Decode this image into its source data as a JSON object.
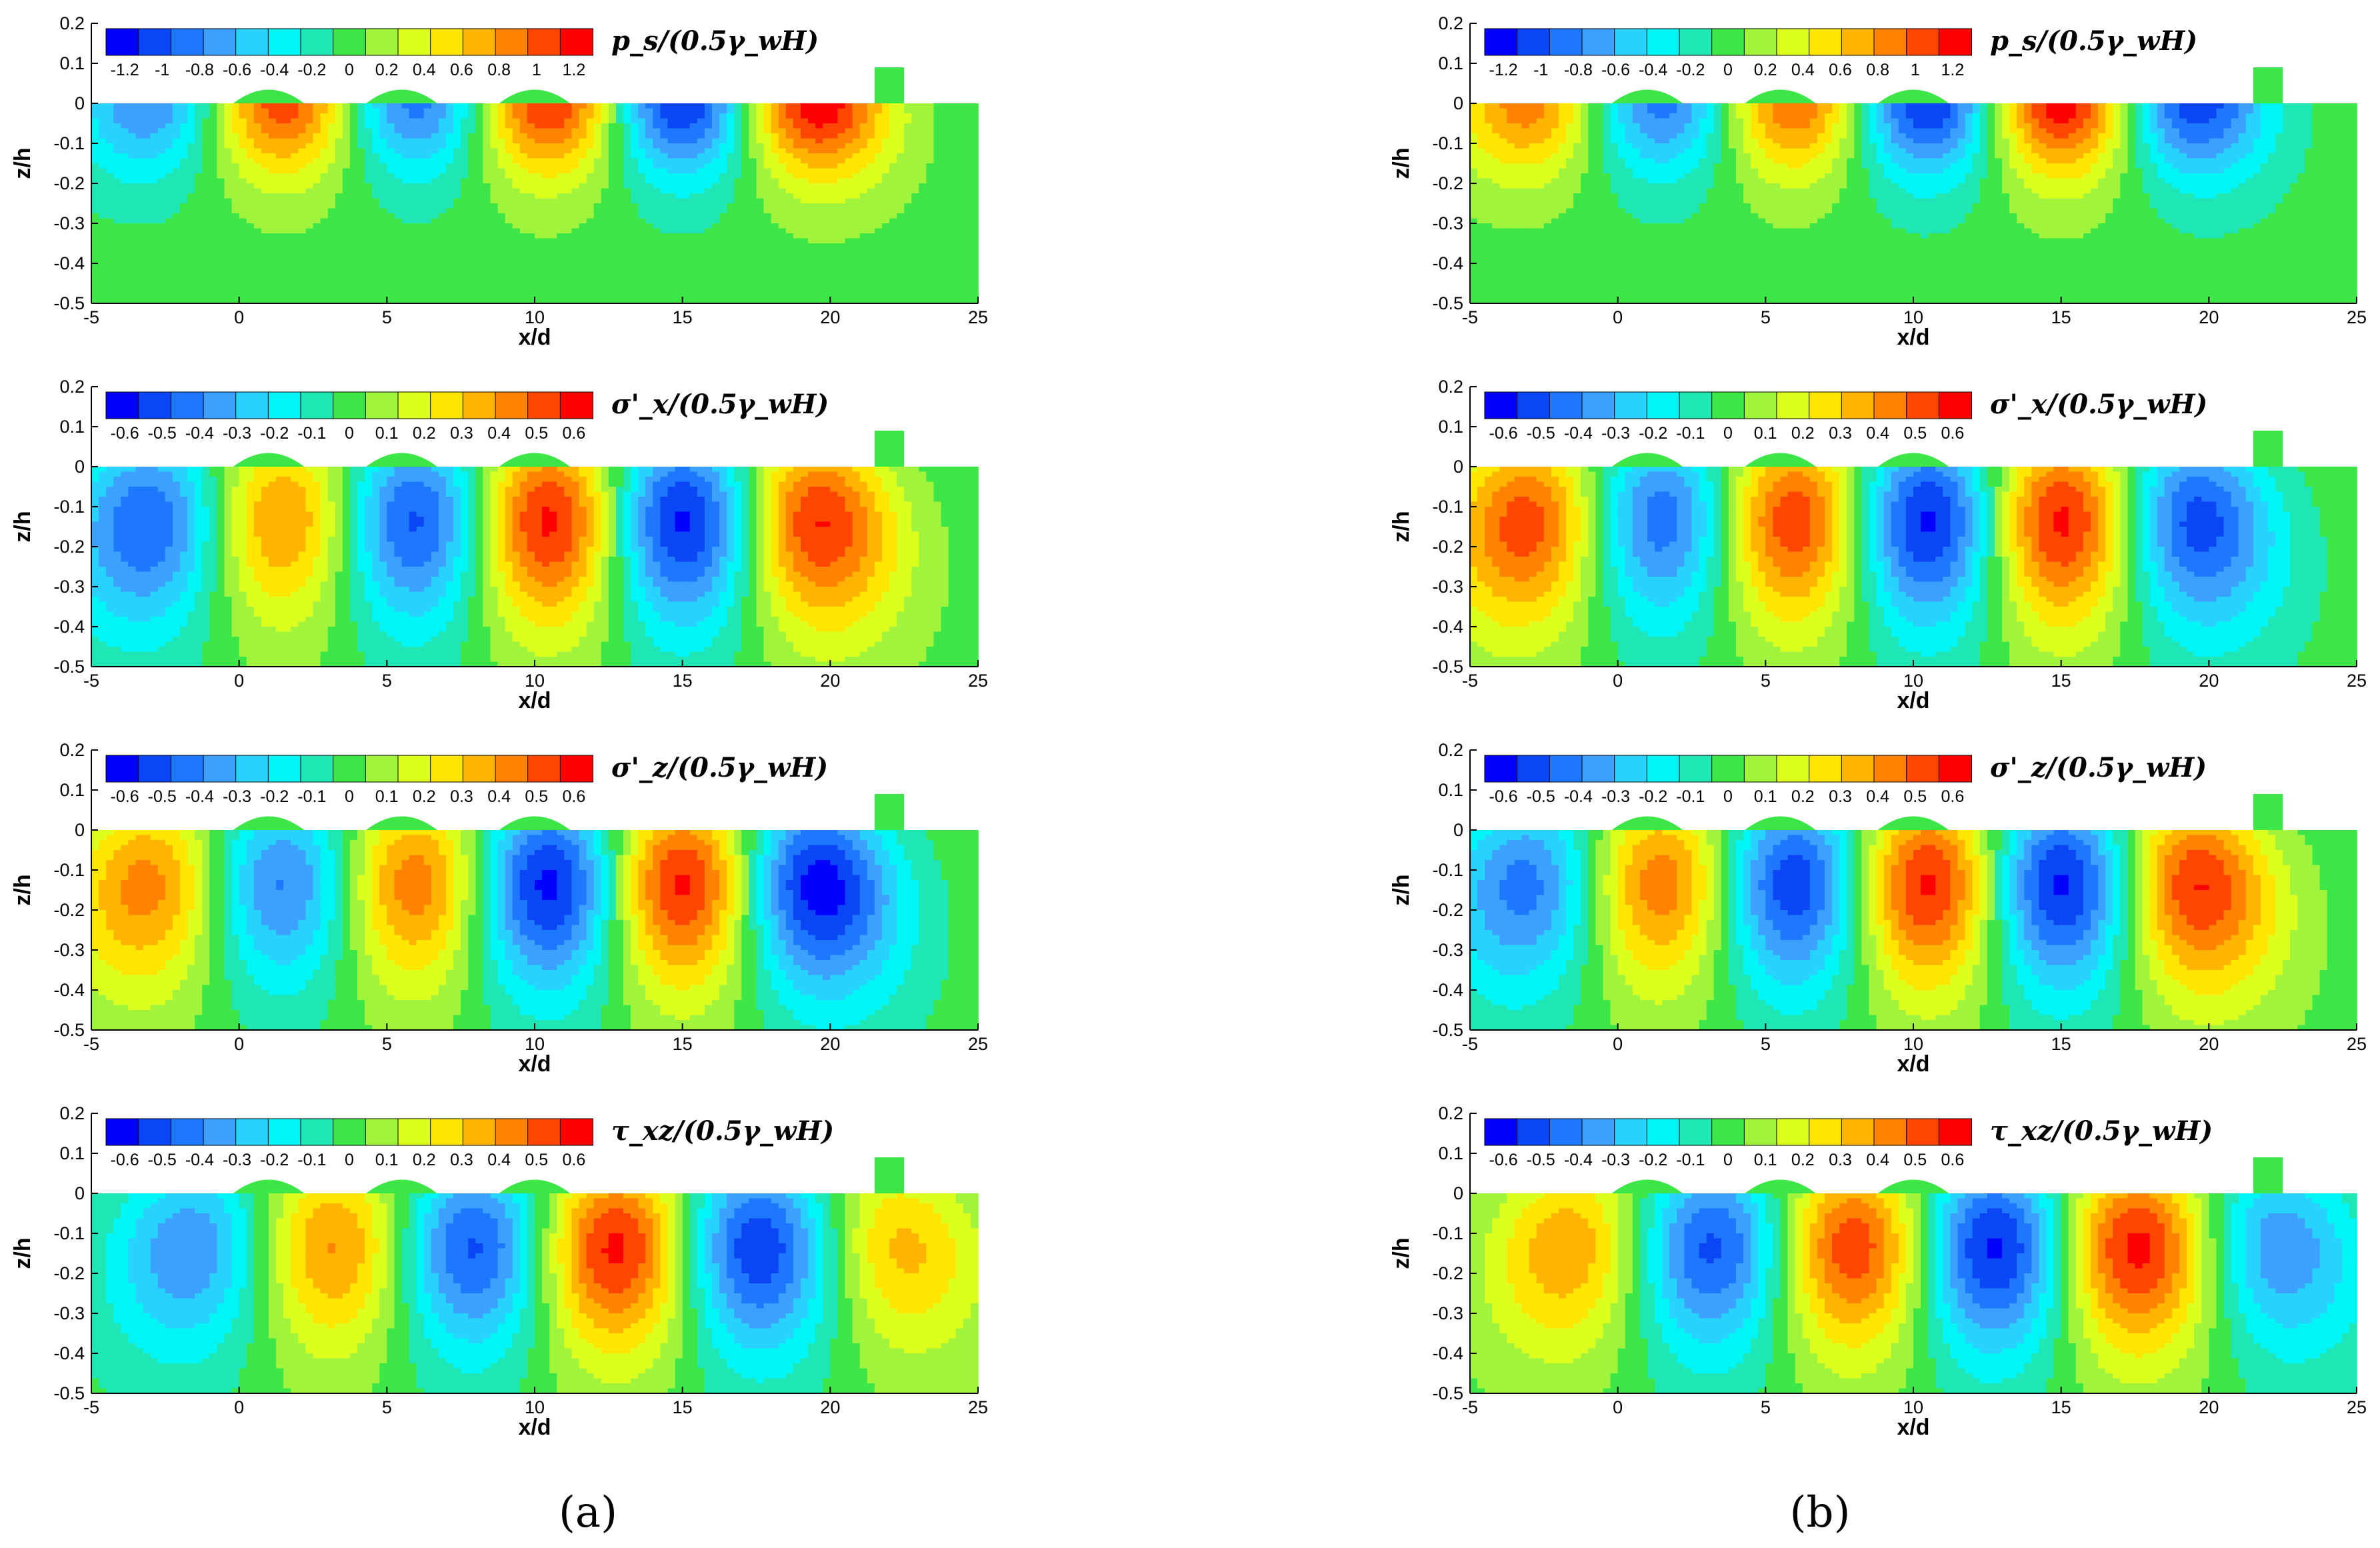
{
  "figure": {
    "panel_labels": [
      "(a)",
      "(b)"
    ]
  },
  "chart_data": [
    {
      "type": "heatmap",
      "panel": "a",
      "row": 1,
      "title": "p_s/(0.5γ_wH)",
      "xlabel": "x/d",
      "ylabel": "z/h",
      "xlim": [
        -5,
        25
      ],
      "ylim": [
        -0.5,
        0.2
      ],
      "x_ticks": [
        "-5",
        "0",
        "5",
        "10",
        "15",
        "20",
        "25"
      ],
      "y_ticks": [
        "0.2",
        "0.1",
        "0",
        "-0.1",
        "-0.2",
        "-0.3",
        "-0.4",
        "-0.5"
      ],
      "colorbar": {
        "min": -1.3,
        "max": 1.3,
        "ticks": [
          "-1.2",
          "-1",
          "-0.8",
          "-0.6",
          "-0.4",
          "-0.2",
          "0",
          "0.2",
          "0.4",
          "0.6",
          "0.8",
          "1",
          "1.2"
        ]
      },
      "structure": {
        "x0": -3.0,
        "wavelength": 9.0,
        "first_sign": -1,
        "depth_scale": 0.1,
        "core_depth": 0.0,
        "amps": [
          -0.8,
          1.1,
          -0.9,
          1.2,
          -1.2,
          1.3
        ]
      },
      "obstacle_x": 22,
      "wave_crests": [
        1,
        5.5,
        10
      ]
    },
    {
      "type": "heatmap",
      "panel": "a",
      "row": 2,
      "title": "σ'_x/(0.5γ_wH)",
      "xlabel": "x/d",
      "ylabel": "z/h",
      "xlim": [
        -5,
        25
      ],
      "ylim": [
        -0.5,
        0.2
      ],
      "x_ticks": [
        "-5",
        "0",
        "5",
        "10",
        "15",
        "20",
        "25"
      ],
      "y_ticks": [
        "0.2",
        "0.1",
        "0",
        "-0.1",
        "-0.2",
        "-0.3",
        "-0.4",
        "-0.5"
      ],
      "colorbar": {
        "min": -0.65,
        "max": 0.65,
        "ticks": [
          "-0.6",
          "-0.5",
          "-0.4",
          "-0.3",
          "-0.2",
          "-0.1",
          "0",
          "0.1",
          "0.2",
          "0.3",
          "0.4",
          "0.5",
          "0.6"
        ]
      },
      "structure": {
        "x0": -3.0,
        "wavelength": 9.0,
        "first_sign": -1,
        "depth_scale": 0.13,
        "core_depth": -0.15,
        "amps": [
          -0.5,
          0.45,
          -0.55,
          0.65,
          -0.65,
          0.6
        ]
      },
      "obstacle_x": 22,
      "wave_crests": [
        1,
        5.5,
        10
      ]
    },
    {
      "type": "heatmap",
      "panel": "a",
      "row": 3,
      "title": "σ'_z/(0.5γ_wH)",
      "xlabel": "x/d",
      "ylabel": "z/h",
      "xlim": [
        -5,
        25
      ],
      "ylim": [
        -0.5,
        0.2
      ],
      "x_ticks": [
        "-5",
        "0",
        "5",
        "10",
        "15",
        "20",
        "25"
      ],
      "y_ticks": [
        "0.2",
        "0.1",
        "0",
        "-0.1",
        "-0.2",
        "-0.3",
        "-0.4",
        "-0.5"
      ],
      "colorbar": {
        "min": -0.65,
        "max": 0.65,
        "ticks": [
          "-0.6",
          "-0.5",
          "-0.4",
          "-0.3",
          "-0.2",
          "-0.1",
          "0",
          "0.1",
          "0.2",
          "0.3",
          "0.4",
          "0.5",
          "0.6"
        ]
      },
      "structure": {
        "x0": -3.0,
        "wavelength": 9.0,
        "first_sign": 1,
        "depth_scale": 0.13,
        "core_depth": -0.15,
        "amps": [
          0.45,
          -0.45,
          0.5,
          -0.65,
          0.65,
          -0.65
        ]
      },
      "obstacle_x": 22,
      "wave_crests": [
        1,
        5.5,
        10
      ]
    },
    {
      "type": "heatmap",
      "panel": "a",
      "row": 4,
      "title": "τ_xz/(0.5γ_wH)",
      "xlabel": "x/d",
      "ylabel": "z/h",
      "xlim": [
        -5,
        25
      ],
      "ylim": [
        -0.5,
        0.2
      ],
      "x_ticks": [
        "-5",
        "0",
        "5",
        "10",
        "15",
        "20",
        "25"
      ],
      "y_ticks": [
        "0.2",
        "0.1",
        "0",
        "-0.1",
        "-0.2",
        "-0.3",
        "-0.4",
        "-0.5"
      ],
      "colorbar": {
        "min": -0.65,
        "max": 0.65,
        "ticks": [
          "-0.6",
          "-0.5",
          "-0.4",
          "-0.3",
          "-0.2",
          "-0.1",
          "0",
          "0.1",
          "0.2",
          "0.3",
          "0.4",
          "0.5",
          "0.6"
        ]
      },
      "structure": {
        "x0": -1.5,
        "wavelength": 9.5,
        "first_sign": -1,
        "depth_scale": 0.13,
        "core_depth": -0.15,
        "amps": [
          -0.4,
          0.45,
          -0.55,
          0.65,
          -0.6,
          0.35
        ]
      },
      "obstacle_x": 22,
      "wave_crests": [
        1,
        5.5,
        10
      ]
    },
    {
      "type": "heatmap",
      "panel": "b",
      "row": 1,
      "title": "p_s/(0.5γ_wH)",
      "xlabel": "x/d",
      "ylabel": "z/h",
      "xlim": [
        -5,
        25
      ],
      "ylim": [
        -0.5,
        0.2
      ],
      "x_ticks": [
        "-5",
        "0",
        "5",
        "10",
        "15",
        "20",
        "25"
      ],
      "y_ticks": [
        "0.2",
        "0.1",
        "0",
        "-0.1",
        "-0.2",
        "-0.3",
        "-0.4",
        "-0.5"
      ],
      "colorbar": {
        "min": -1.3,
        "max": 1.3,
        "ticks": [
          "-1.2",
          "-1",
          "-0.8",
          "-0.6",
          "-0.4",
          "-0.2",
          "0",
          "0.2",
          "0.4",
          "0.6",
          "0.8",
          "1",
          "1.2"
        ]
      },
      "structure": {
        "x0": -3.0,
        "wavelength": 9.0,
        "first_sign": 1,
        "depth_scale": 0.1,
        "core_depth": 0.0,
        "amps": [
          0.9,
          -0.9,
          1.0,
          -1.2,
          1.3,
          -1.1
        ]
      },
      "obstacle_x": 22,
      "wave_crests": [
        1,
        5.5,
        10
      ]
    },
    {
      "type": "heatmap",
      "panel": "b",
      "row": 2,
      "title": "σ'_x/(0.5γ_wH)",
      "xlabel": "x/d",
      "ylabel": "z/h",
      "xlim": [
        -5,
        25
      ],
      "ylim": [
        -0.5,
        0.2
      ],
      "x_ticks": [
        "-5",
        "0",
        "5",
        "10",
        "15",
        "20",
        "25"
      ],
      "y_ticks": [
        "0.2",
        "0.1",
        "0",
        "-0.1",
        "-0.2",
        "-0.3",
        "-0.4",
        "-0.5"
      ],
      "colorbar": {
        "min": -0.65,
        "max": 0.65,
        "ticks": [
          "-0.6",
          "-0.5",
          "-0.4",
          "-0.3",
          "-0.2",
          "-0.1",
          "0",
          "0.1",
          "0.2",
          "0.3",
          "0.4",
          "0.5",
          "0.6"
        ]
      },
      "structure": {
        "x0": -3.0,
        "wavelength": 9.0,
        "first_sign": 1,
        "depth_scale": 0.13,
        "core_depth": -0.15,
        "amps": [
          0.55,
          -0.5,
          0.6,
          -0.65,
          0.65,
          -0.55
        ]
      },
      "obstacle_x": 22,
      "wave_crests": [
        1,
        5.5,
        10
      ]
    },
    {
      "type": "heatmap",
      "panel": "b",
      "row": 3,
      "title": "σ'_z/(0.5γ_wH)",
      "xlabel": "x/d",
      "ylabel": "z/h",
      "xlim": [
        -5,
        25
      ],
      "ylim": [
        -0.5,
        0.2
      ],
      "x_ticks": [
        "-5",
        "0",
        "5",
        "10",
        "15",
        "20",
        "25"
      ],
      "y_ticks": [
        "0.2",
        "0.1",
        "0",
        "-0.1",
        "-0.2",
        "-0.3",
        "-0.4",
        "-0.5"
      ],
      "colorbar": {
        "min": -0.65,
        "max": 0.65,
        "ticks": [
          "-0.6",
          "-0.5",
          "-0.4",
          "-0.3",
          "-0.2",
          "-0.1",
          "0",
          "0.1",
          "0.2",
          "0.3",
          "0.4",
          "0.5",
          "0.6"
        ]
      },
      "structure": {
        "x0": -3.0,
        "wavelength": 9.0,
        "first_sign": -1,
        "depth_scale": 0.13,
        "core_depth": -0.15,
        "amps": [
          -0.45,
          0.5,
          -0.6,
          0.65,
          -0.65,
          0.6
        ]
      },
      "obstacle_x": 22,
      "wave_crests": [
        1,
        5.5,
        10
      ]
    },
    {
      "type": "heatmap",
      "panel": "b",
      "row": 4,
      "title": "τ_xz/(0.5γ_wH)",
      "xlabel": "x/d",
      "ylabel": "z/h",
      "xlim": [
        -5,
        25
      ],
      "ylim": [
        -0.5,
        0.2
      ],
      "x_ticks": [
        "-5",
        "0",
        "5",
        "10",
        "15",
        "20",
        "25"
      ],
      "y_ticks": [
        "0.2",
        "0.1",
        "0",
        "-0.1",
        "-0.2",
        "-0.3",
        "-0.4",
        "-0.5"
      ],
      "colorbar": {
        "min": -0.65,
        "max": 0.65,
        "ticks": [
          "-0.6",
          "-0.5",
          "-0.4",
          "-0.3",
          "-0.2",
          "-0.1",
          "0",
          "0.1",
          "0.2",
          "0.3",
          "0.4",
          "0.5",
          "0.6"
        ]
      },
      "structure": {
        "x0": -1.5,
        "wavelength": 9.5,
        "first_sign": 1,
        "depth_scale": 0.13,
        "core_depth": -0.15,
        "amps": [
          0.4,
          -0.55,
          0.6,
          -0.65,
          0.65,
          -0.4
        ]
      },
      "obstacle_x": 22,
      "wave_crests": [
        1,
        5.5,
        10
      ]
    }
  ],
  "palette": [
    "#0000ff",
    "#0a46f5",
    "#1e78ff",
    "#3ca0ff",
    "#28d2ff",
    "#00f5f5",
    "#1ee6b4",
    "#3ce646",
    "#a0f53c",
    "#dcff1e",
    "#ffe600",
    "#ffb400",
    "#ff8200",
    "#ff4600",
    "#ff0000"
  ]
}
